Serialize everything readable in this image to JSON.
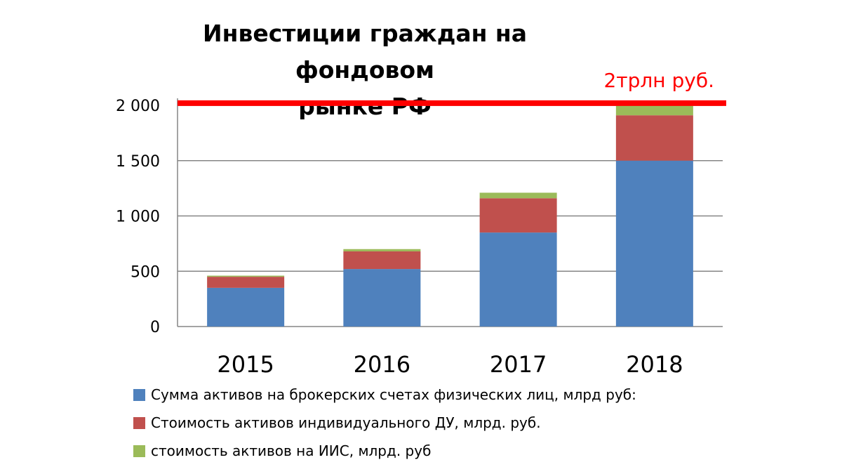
{
  "chart_data": {
    "type": "bar",
    "stacked": true,
    "title_lines": [
      "Инвестиции граждан на фондовом",
      "рынке РФ"
    ],
    "categories": [
      "2015",
      "2016",
      "2017",
      "2018"
    ],
    "series": [
      {
        "name": "Сумма активов на брокерских счетах физических лиц, млрд руб:",
        "color": "#4F81BD",
        "values": [
          350,
          520,
          850,
          1500
        ]
      },
      {
        "name": "Стоимость активов индивидуального ДУ,  млрд. руб.",
        "color": "#C0504D",
        "values": [
          100,
          160,
          310,
          410
        ]
      },
      {
        "name": "стоимость активов на ИИС, млрд. руб",
        "color": "#9BBB59",
        "values": [
          10,
          20,
          50,
          100
        ]
      }
    ],
    "ylim": [
      0,
      2000
    ],
    "yticks": [
      0,
      500,
      1000,
      1500,
      2000
    ],
    "ytick_labels": [
      "0",
      "500",
      "1 000",
      "1 500",
      "2 000"
    ],
    "grid": true,
    "legend_position": "bottom",
    "reference_line": {
      "value": 2020,
      "label": "2трлн руб.",
      "color": "#FF0000"
    }
  }
}
